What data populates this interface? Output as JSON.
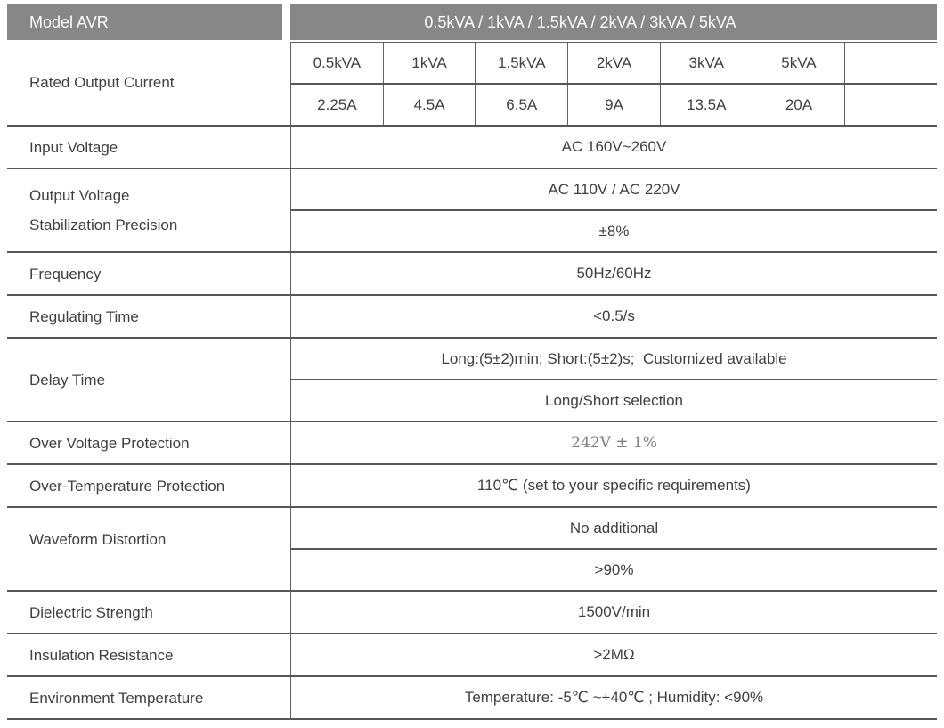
{
  "colors": {
    "page-bg": "#ffffff",
    "header-bg": "#868789",
    "header-text": "#fdfdfd",
    "text": "#3d4144",
    "muted-text": "#7e8082",
    "line-strong": "#55575a",
    "line-light": "#606264"
  },
  "header": {
    "model_label": "Model AVR",
    "models": "0.5kVA / 1kVA / 1.5kVA / 2kVA / 3kVA / 5kVA"
  },
  "rated": {
    "label": "Rated Output Current",
    "capacities": [
      "0.5kVA",
      "1kVA",
      "1.5kVA",
      "2kVA",
      "3kVA",
      "5kVA",
      ""
    ],
    "currents": [
      "2.25A",
      "4.5A",
      "6.5A",
      "9A",
      "13.5A",
      "20A",
      ""
    ]
  },
  "specs": [
    {
      "label": "Input Voltage",
      "values": [
        "AC 160V~260V"
      ]
    },
    {
      "label": "Output Voltage",
      "label2": "Stabilization Precision",
      "values": [
        "AC 110V / AC 220V",
        "±8%"
      ]
    },
    {
      "label": "Frequency",
      "values": [
        "50Hz/60Hz"
      ]
    },
    {
      "label": "Regulating Time",
      "values": [
        "<0.5/s"
      ]
    },
    {
      "label": "Delay Time",
      "values": [
        "Long:(5±2)min; Short:(5±2)s;  Customized available",
        "Long/Short selection"
      ]
    },
    {
      "label": "Over Voltage Protection",
      "values": [
        "242V ± 1%"
      ]
    },
    {
      "label": "Over-Temperature Protection",
      "values": [
        "110℃ (set to your specific requirements)"
      ]
    },
    {
      "label": "Waveform Distortion",
      "values": [
        "No additional",
        ">90%"
      ]
    },
    {
      "label": "Dielectric Strength",
      "values": [
        "1500V/min"
      ]
    },
    {
      "label": "Insulation Resistance",
      "values": [
        ">2MΩ"
      ]
    },
    {
      "label": "Environment Temperature",
      "values": [
        "Temperature: -5℃ ~+40℃ ; Humidity: <90%"
      ]
    }
  ]
}
